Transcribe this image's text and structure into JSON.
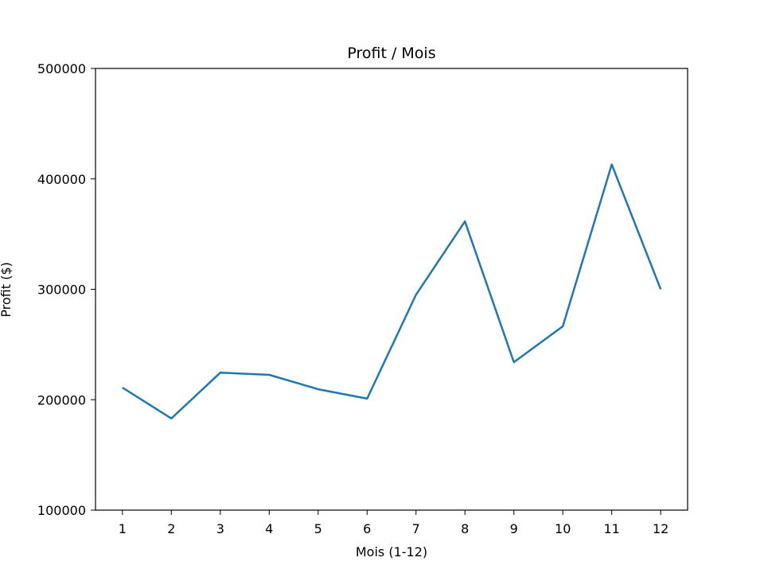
{
  "chart_data": {
    "type": "line",
    "title": "Profit / Mois",
    "xlabel": "Mois (1-12)",
    "ylabel": "Profit ($)",
    "categories": [
      "1",
      "2",
      "3",
      "4",
      "5",
      "6",
      "7",
      "8",
      "9",
      "10",
      "11",
      "12"
    ],
    "series": [
      {
        "values": [
          211000,
          183000,
          224500,
          222500,
          209500,
          201000,
          295000,
          361500,
          234000,
          266500,
          413000,
          300000
        ],
        "color": "#1f77b4"
      }
    ],
    "xlim": [
      0.45,
      12.55
    ],
    "ylim": [
      100000,
      500000
    ],
    "yticks": [
      100000,
      200000,
      300000,
      400000,
      500000
    ],
    "ytick_labels": [
      "100000",
      "200000",
      "300000",
      "400000",
      "500000"
    ],
    "grid": false,
    "legend": false
  }
}
